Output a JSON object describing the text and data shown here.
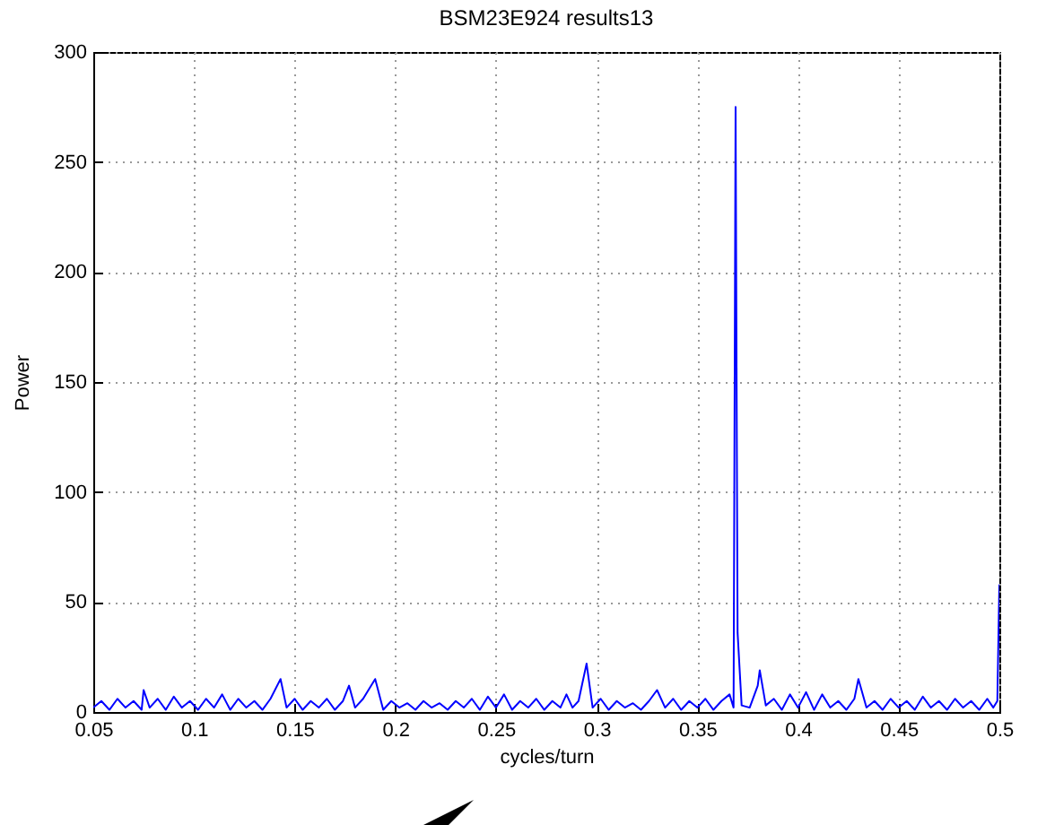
{
  "chart_data": {
    "type": "line",
    "title": "BSM23E924 results13",
    "xlabel": "cycles/turn",
    "ylabel": "Power",
    "x": [
      0.05,
      0.054,
      0.058,
      0.062,
      0.066,
      0.07,
      0.074,
      0.075,
      0.078,
      0.082,
      0.086,
      0.09,
      0.094,
      0.098,
      0.102,
      0.106,
      0.11,
      0.114,
      0.118,
      0.122,
      0.126,
      0.13,
      0.134,
      0.138,
      0.143,
      0.146,
      0.15,
      0.154,
      0.158,
      0.162,
      0.166,
      0.17,
      0.174,
      0.177,
      0.18,
      0.184,
      0.19,
      0.194,
      0.198,
      0.202,
      0.206,
      0.21,
      0.214,
      0.218,
      0.222,
      0.226,
      0.23,
      0.234,
      0.238,
      0.242,
      0.246,
      0.25,
      0.254,
      0.258,
      0.262,
      0.266,
      0.27,
      0.274,
      0.278,
      0.282,
      0.285,
      0.288,
      0.291,
      0.295,
      0.298,
      0.302,
      0.306,
      0.31,
      0.314,
      0.318,
      0.322,
      0.326,
      0.33,
      0.334,
      0.338,
      0.342,
      0.346,
      0.35,
      0.354,
      0.358,
      0.362,
      0.366,
      0.368,
      0.369,
      0.3695,
      0.37,
      0.372,
      0.376,
      0.38,
      0.381,
      0.384,
      0.388,
      0.392,
      0.396,
      0.4,
      0.404,
      0.408,
      0.412,
      0.416,
      0.42,
      0.424,
      0.428,
      0.43,
      0.434,
      0.438,
      0.442,
      0.446,
      0.45,
      0.454,
      0.458,
      0.462,
      0.466,
      0.47,
      0.474,
      0.478,
      0.482,
      0.486,
      0.49,
      0.494,
      0.497,
      0.499,
      0.5
    ],
    "series": [
      {
        "color": "#0000ff",
        "values": [
          2,
          5,
          1,
          6,
          2,
          5,
          1,
          10,
          2,
          6,
          1,
          7,
          2,
          5,
          1,
          6,
          2,
          8,
          1,
          6,
          2,
          5,
          1,
          6,
          15,
          2,
          6,
          1,
          5,
          2,
          6,
          1,
          5,
          12,
          2,
          6,
          15,
          1,
          5,
          2,
          4,
          1,
          5,
          2,
          4,
          1,
          5,
          2,
          6,
          1,
          7,
          2,
          8,
          1,
          5,
          2,
          6,
          1,
          5,
          2,
          8,
          2,
          5,
          22,
          2,
          6,
          1,
          5,
          2,
          4,
          1,
          5,
          10,
          2,
          6,
          1,
          5,
          2,
          6,
          1,
          5,
          8,
          2,
          275,
          150,
          36,
          3,
          2,
          12,
          19,
          3,
          6,
          1,
          8,
          2,
          9,
          1,
          8,
          2,
          5,
          1,
          6,
          15,
          2,
          5,
          1,
          6,
          2,
          5,
          1,
          7,
          2,
          5,
          1,
          6,
          2,
          5,
          1,
          6,
          2,
          5,
          58
        ]
      }
    ],
    "xlim": [
      0.05,
      0.5
    ],
    "xticks": [
      0.05,
      0.1,
      0.15,
      0.2,
      0.25,
      0.3,
      0.35,
      0.4,
      0.45,
      0.5
    ],
    "ylim": [
      0,
      300
    ],
    "yticks": [
      0,
      50,
      100,
      150,
      200,
      250,
      300
    ],
    "grid": true,
    "marker": "none",
    "line_style": "solid"
  }
}
